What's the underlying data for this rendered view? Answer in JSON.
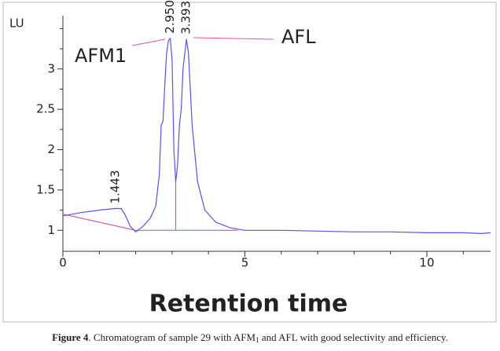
{
  "chart_data": {
    "type": "line",
    "y_unit_label": "LU",
    "xlabel": "Retention time",
    "series": [
      {
        "color": "#5555ee",
        "x": [
          0,
          0.5,
          1.0,
          1.443,
          1.6,
          1.7,
          1.85,
          2.0,
          2.2,
          2.4,
          2.55,
          2.65,
          2.7,
          2.75,
          2.8,
          2.85,
          2.9,
          2.95,
          3.0,
          3.05,
          3.1,
          3.15,
          3.2,
          3.25,
          3.3,
          3.393,
          3.45,
          3.55,
          3.7,
          3.9,
          4.2,
          4.6,
          5.0,
          6.0,
          7.0,
          8.0,
          9.0,
          10.0,
          11.0,
          11.5,
          11.75
        ],
        "values": [
          1.18,
          1.22,
          1.25,
          1.27,
          1.27,
          1.2,
          1.05,
          0.98,
          1.05,
          1.15,
          1.3,
          1.7,
          2.3,
          2.35,
          2.8,
          3.2,
          3.35,
          3.38,
          3.1,
          2.0,
          1.6,
          1.8,
          2.3,
          2.5,
          3.0,
          3.37,
          3.2,
          2.3,
          1.6,
          1.25,
          1.1,
          1.03,
          1.0,
          1.0,
          0.99,
          0.98,
          0.98,
          0.97,
          0.97,
          0.96,
          0.97
        ]
      }
    ],
    "integration_lines": {
      "color": "#e0559a",
      "segments": [
        {
          "x": [
            0,
            2.0
          ],
          "values": [
            1.2,
            1.0
          ]
        },
        {
          "x": [
            2.0,
            4.8
          ],
          "values": [
            1.0,
            1.0
          ]
        },
        {
          "x": [
            3.1,
            3.1
          ],
          "values": [
            1.0,
            1.6
          ]
        }
      ]
    },
    "peak_labels": [
      {
        "x": 1.443,
        "y": 1.27,
        "label": "1.443"
      },
      {
        "x": 2.95,
        "y": 3.38,
        "label": "2.950"
      },
      {
        "x": 3.393,
        "y": 3.37,
        "label": "3.393"
      }
    ],
    "annotations": [
      "AFM1",
      "AFL"
    ],
    "xlim": [
      0,
      11.75
    ],
    "ylim": [
      0.74,
      3.66
    ],
    "xticks": [
      0,
      5,
      10
    ],
    "yticks": [
      1,
      {
        "value": 1.5,
        "label": "1.5"
      },
      2,
      {
        "value": 2.5,
        "label": "2.5"
      },
      3
    ],
    "xminorticks": [
      1,
      2,
      3,
      4,
      6,
      7,
      8,
      9,
      11
    ],
    "yminorticks": [
      1.25,
      1.75,
      2.25,
      2.75,
      3.25,
      3.5
    ]
  },
  "caption": {
    "label": "Figure 4",
    "parts": [
      ". Chromatogram of sample 29 with AFM",
      "1",
      " and AFL with good selectivity and efficiency."
    ]
  }
}
